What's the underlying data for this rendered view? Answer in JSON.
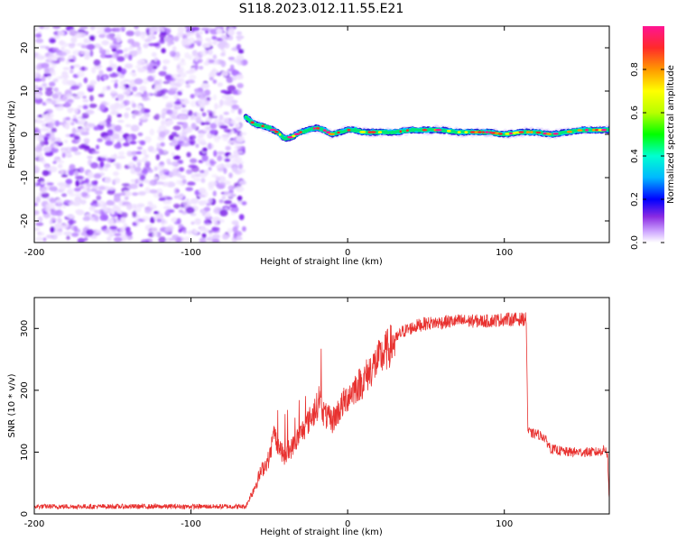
{
  "title": "S118.2023.012.11.55.E21",
  "colors": {
    "snr_line": "#e8312f",
    "background_noise": "#7b1fe0"
  },
  "chart_data": [
    {
      "type": "heatmap",
      "xlabel": "Height of straight line (km)",
      "ylabel": "Frequency (Hz)",
      "xlim": [
        -200,
        167
      ],
      "ylim": [
        -25,
        25
      ],
      "xticks": [
        -200,
        -100,
        0,
        100
      ],
      "yticks": [
        -20,
        -10,
        0,
        10,
        20
      ],
      "colorbar": {
        "label": "Normalized spectral amplitude",
        "range": [
          0,
          1
        ],
        "ticks": [
          0.0,
          0.2,
          0.4,
          0.6,
          0.8
        ],
        "colormap": "rainbow"
      },
      "noise_region_x": [
        -200,
        -66
      ],
      "signal_trace": {
        "x": [
          -65,
          -60,
          -55,
          -50,
          -45,
          -40,
          -35,
          -30,
          -25,
          -20,
          -15,
          -10,
          -5,
          0,
          5,
          10,
          20,
          30,
          40,
          50,
          60,
          70,
          80,
          90,
          100,
          110,
          120,
          130,
          140,
          150,
          160,
          167
        ],
        "freq": [
          4,
          2.5,
          2,
          1.5,
          0.5,
          -1,
          -0.5,
          0.5,
          1,
          1.5,
          1,
          0,
          0.5,
          1,
          1,
          0.5,
          0.5,
          0.5,
          1,
          1,
          1,
          0.5,
          0.5,
          0.5,
          0,
          0.5,
          0.5,
          0,
          0.5,
          1,
          1,
          1
        ]
      }
    },
    {
      "type": "line",
      "xlabel": "Height of straight line (km)",
      "ylabel": "SNR (10 * v/v)",
      "xlim": [
        -200,
        167
      ],
      "ylim": [
        0,
        350
      ],
      "xticks": [
        -200,
        -100,
        0,
        100
      ],
      "yticks": [
        0,
        100,
        200,
        300
      ],
      "series": [
        {
          "x": [
            -200,
            -150,
            -100,
            -70,
            -65,
            -60,
            -55,
            -50,
            -47,
            -44,
            -40,
            -35,
            -30,
            -25,
            -20,
            -18,
            -15,
            -10,
            -5,
            0,
            5,
            10,
            15,
            20,
            25,
            30,
            35,
            40,
            45,
            50,
            60,
            70,
            80,
            90,
            100,
            105,
            110,
            114,
            115,
            117,
            120,
            125,
            130,
            140,
            150,
            160,
            165,
            166,
            167
          ],
          "y": [
            12,
            12,
            12,
            12,
            12,
            40,
            70,
            90,
            130,
            110,
            90,
            110,
            130,
            150,
            170,
            190,
            160,
            150,
            170,
            190,
            205,
            215,
            235,
            250,
            265,
            280,
            295,
            300,
            305,
            308,
            310,
            312,
            312,
            312,
            315,
            315,
            315,
            315,
            135,
            130,
            130,
            125,
            105,
            100,
            100,
            100,
            105,
            90,
            20
          ]
        }
      ]
    }
  ]
}
